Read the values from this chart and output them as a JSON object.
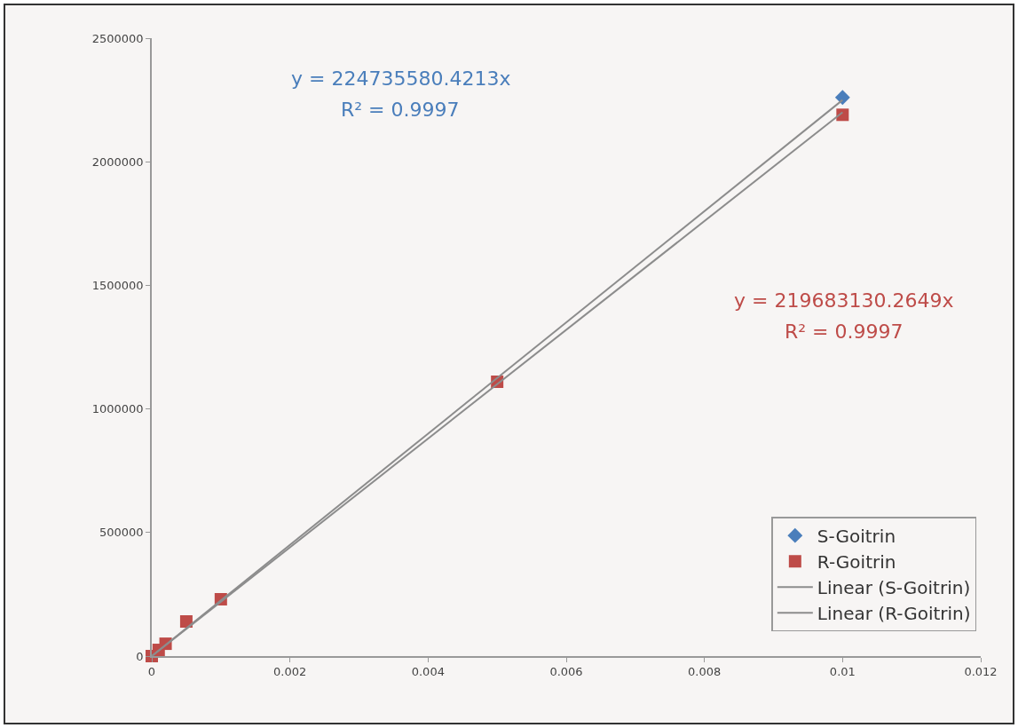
{
  "chart_data": {
    "type": "scatter",
    "xlim": [
      0,
      0.012
    ],
    "xticks": [
      0,
      0.002,
      0.004,
      0.006,
      0.008,
      0.01,
      0.012
    ],
    "ylim": [
      0,
      2500000
    ],
    "yticks": [
      0,
      500000,
      1000000,
      1500000,
      2000000,
      2500000
    ],
    "grid": false,
    "legend": "bottom right",
    "series": [
      {
        "name": "S-Goitrin",
        "marker": "diamond",
        "color": "#4a7ebb",
        "x": [
          0.01
        ],
        "values": [
          2260000
        ]
      },
      {
        "name": "R-Goitrin",
        "marker": "square",
        "color": "#be4b48",
        "x": [
          0,
          5e-05,
          0.0001,
          0.0002,
          0.0005,
          0.001,
          0.005,
          0.01
        ],
        "values": [
          0,
          null,
          25000,
          50000,
          140000,
          230000,
          1110000,
          2190000
        ]
      },
      {
        "name": "Linear (S-Goitrin)",
        "type": "line",
        "marker": "none",
        "color": "#8c8c8c",
        "x": [
          0,
          0.01
        ],
        "values": [
          0,
          2250000
        ]
      },
      {
        "name": "Linear (R-Goitrin)",
        "type": "line",
        "marker": "none",
        "color": "#8c8c8c",
        "x": [
          0,
          0.01
        ],
        "values": [
          0,
          2200000
        ]
      }
    ],
    "annotations": [
      "y = 224735580.4213x",
      "R² = 0.9997",
      "y = 219683130.2649x",
      "R² = 0.9997"
    ]
  }
}
